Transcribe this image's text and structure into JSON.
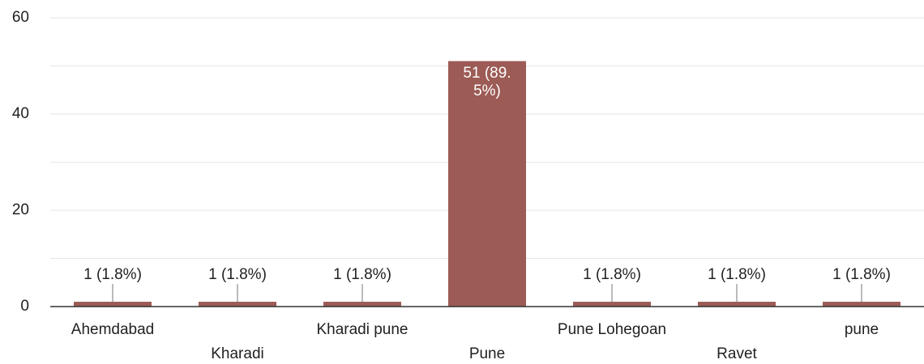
{
  "chart_data": {
    "type": "bar",
    "categories": [
      "Ahemdabad",
      "Kharadi",
      "Kharadi pune",
      "Pune",
      "Pune Lohegoan",
      "Ravet",
      "pune"
    ],
    "values": [
      1,
      1,
      1,
      51,
      1,
      1,
      1
    ],
    "value_labels": [
      "1 (1.8%)",
      "1 (1.8%)",
      "1 (1.8%)",
      "51 (89.5%)",
      "1 (1.8%)",
      "1 (1.8%)",
      "1 (1.8%)"
    ],
    "color": "#9c5b55",
    "ylim": [
      0,
      60
    ],
    "yticks": [
      0,
      20,
      40,
      60
    ],
    "ygrid": [
      10,
      20,
      30,
      40,
      50,
      60
    ],
    "grid": true
  }
}
